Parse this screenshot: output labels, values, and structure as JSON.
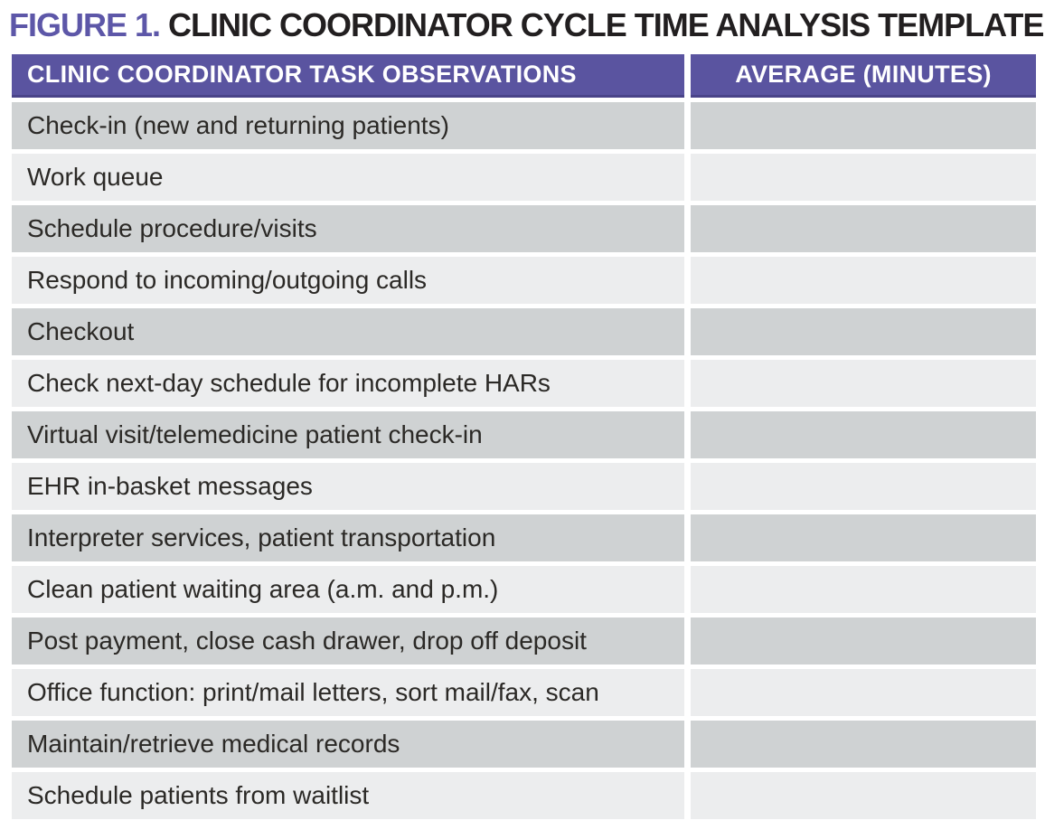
{
  "figure": {
    "label": "FIGURE 1.",
    "title": "CLINIC COORDINATOR CYCLE TIME ANALYSIS TEMPLATE"
  },
  "table": {
    "headers": {
      "task": "CLINIC COORDINATOR TASK OBSERVATIONS",
      "average": "AVERAGE (MINUTES)"
    },
    "rows": [
      {
        "task": "Check-in (new and returning patients)",
        "average": ""
      },
      {
        "task": "Work queue",
        "average": ""
      },
      {
        "task": "Schedule procedure/visits",
        "average": ""
      },
      {
        "task": "Respond to incoming/outgoing calls",
        "average": ""
      },
      {
        "task": "Checkout",
        "average": ""
      },
      {
        "task": "Check next-day schedule for incomplete HARs",
        "average": ""
      },
      {
        "task": "Virtual visit/telemedicine patient check-in",
        "average": ""
      },
      {
        "task": "EHR in-basket messages",
        "average": ""
      },
      {
        "task": "Interpreter services, patient transportation",
        "average": ""
      },
      {
        "task": "Clean patient waiting area (a.m. and p.m.)",
        "average": ""
      },
      {
        "task": "Post payment, close cash drawer, drop off deposit",
        "average": ""
      },
      {
        "task": "Office function: print/mail letters, sort mail/fax, scan",
        "average": ""
      },
      {
        "task": "Maintain/retrieve medical records",
        "average": ""
      },
      {
        "task": "Schedule patients from waitlist",
        "average": ""
      }
    ]
  },
  "colors": {
    "title_purple": "#5d57a8",
    "title_black": "#221f20",
    "header_purple": "#5a54a0",
    "header_border": "#4a4489",
    "row_dark": "#cfd2d3",
    "row_light": "#ecedee",
    "text_dark": "#2b2926"
  }
}
